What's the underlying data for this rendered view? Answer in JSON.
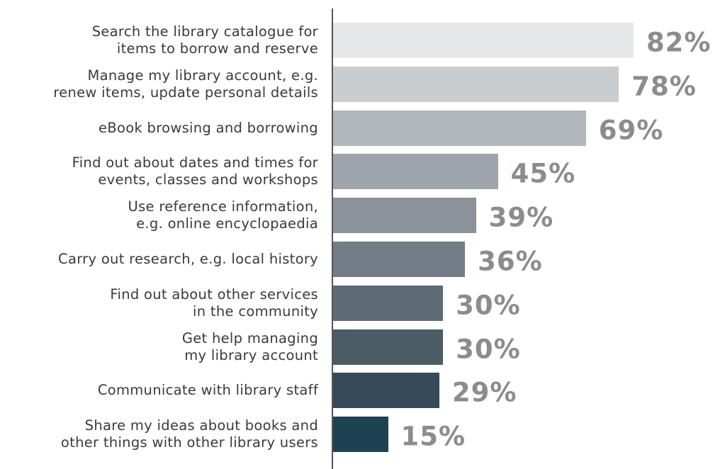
{
  "chart_data": {
    "type": "hbar",
    "categories": [
      "Search the library catalogue for\nitems to borrow and reserve",
      "Manage my library account, e.g.\nrenew items, update personal details",
      "eBook browsing and borrowing",
      "Find out about dates and times for\nevents, classes and workshops",
      "Use reference information,\ne.g. online encyclopaedia",
      "Carry out research, e.g. local history",
      "Find out about other services\nin the community",
      "Get help managing\nmy library account",
      "Communicate with library staff",
      "Share my ideas about books and\nother things with other library users"
    ],
    "values": [
      82,
      78,
      69,
      45,
      39,
      36,
      30,
      30,
      29,
      15
    ],
    "value_labels": [
      "82%",
      "78%",
      "69%",
      "45%",
      "39%",
      "36%",
      "30%",
      "30%",
      "29%",
      "15%"
    ],
    "colors": [
      "#e6e7e8",
      "#c9cdd0",
      "#b2b7bb",
      "#9ea4aa",
      "#8a929a",
      "#727d87",
      "#5d6b77",
      "#4b5c67",
      "#374a5a",
      "#1f4253"
    ],
    "xlim": [
      0,
      100
    ]
  }
}
